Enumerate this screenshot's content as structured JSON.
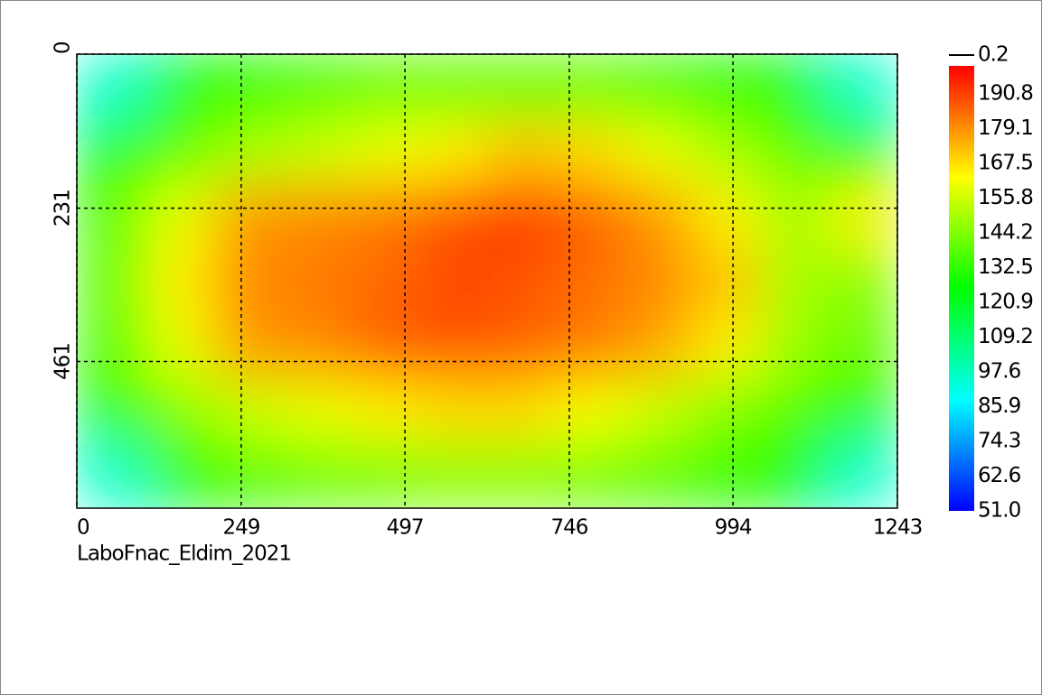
{
  "chart_data": {
    "type": "heatmap",
    "caption": "LaboFnac_Eldim_2021",
    "xlim": [
      0,
      1243
    ],
    "xticks": [
      0,
      249,
      497,
      746,
      994,
      1243
    ],
    "ylim": [
      0,
      681
    ],
    "yticks": [
      0,
      231,
      461
    ],
    "y_reversed": true,
    "grid": true,
    "z": [
      [
        95,
        125,
        130,
        135,
        140,
        140,
        140,
        140,
        135,
        130,
        125,
        95
      ],
      [
        125,
        140,
        150,
        155,
        160,
        165,
        172,
        168,
        160,
        150,
        140,
        130
      ],
      [
        135,
        160,
        178,
        180,
        182,
        188,
        192,
        186,
        178,
        165,
        150,
        165
      ],
      [
        138,
        165,
        180,
        182,
        185,
        190,
        188,
        184,
        180,
        172,
        150,
        145
      ],
      [
        135,
        160,
        178,
        180,
        186,
        188,
        186,
        182,
        176,
        165,
        148,
        140
      ],
      [
        128,
        145,
        155,
        160,
        165,
        168,
        168,
        162,
        155,
        145,
        138,
        130
      ],
      [
        95,
        125,
        135,
        140,
        142,
        145,
        145,
        142,
        138,
        132,
        125,
        95
      ]
    ],
    "colorscale": [
      "#0000ff",
      "#00ffff",
      "#00ff00",
      "#ffff00",
      "#ff0000"
    ],
    "clim": [
      51.0,
      200.2
    ],
    "colorbar_ticks": [
      {
        "value": 51,
        "label": "51.0"
      },
      62.6,
      74.3,
      85.9,
      97.6,
      109.2,
      120.9,
      132.5,
      144.2,
      155.8,
      167.5,
      179.1,
      190.8
    ],
    "contour_level": 0.2
  }
}
